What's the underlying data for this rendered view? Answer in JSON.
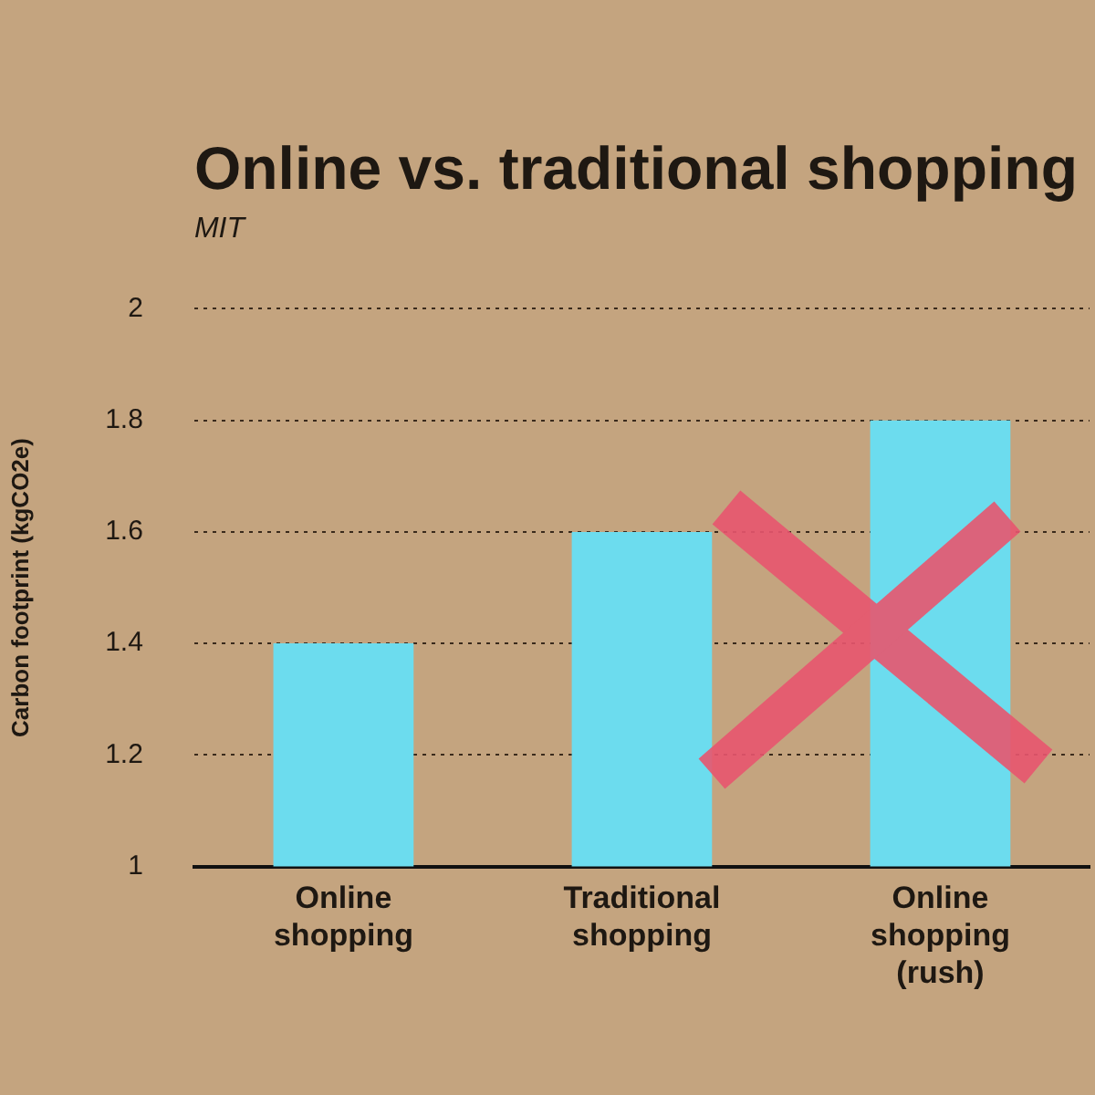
{
  "chart_data": {
    "type": "bar",
    "title": "Online vs. traditional shopping",
    "subtitle": "MIT",
    "ylabel": "Carbon footprint (kgCO2e)",
    "categories": [
      "Online shopping",
      "Traditional shopping",
      "Online shopping (rush)"
    ],
    "values": [
      1.4,
      1.6,
      1.8
    ],
    "color": "#6cdcee",
    "ylim": [
      1,
      2
    ],
    "yticks": [
      1,
      1.2,
      1.4,
      1.6,
      1.8,
      2
    ],
    "grid": "y"
  }
}
